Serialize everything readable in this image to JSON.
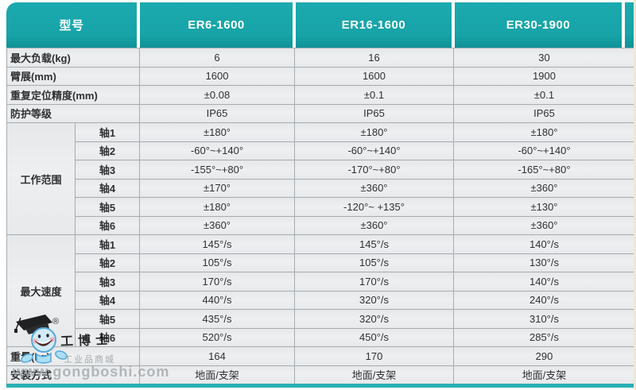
{
  "header": {
    "model_label": "型号",
    "columns": [
      "ER6-1600",
      "ER16-1600",
      "ER30-1900"
    ]
  },
  "table": {
    "simple_top": [
      {
        "label": "最大负载(kg)",
        "values": [
          "6",
          "16",
          "30"
        ]
      },
      {
        "label": "臂展(mm)",
        "values": [
          "1600",
          "1600",
          "1900"
        ]
      },
      {
        "label": "重复定位精度(mm)",
        "values": [
          "±0.08",
          "±0.1",
          "±0.1"
        ]
      },
      {
        "label": "防护等级",
        "values": [
          "IP65",
          "IP65",
          "IP65"
        ]
      }
    ],
    "groups": [
      {
        "label": "工作范围",
        "axes": [
          {
            "label": "轴1",
            "values": [
              "±180°",
              "±180°",
              "±180°"
            ]
          },
          {
            "label": "轴2",
            "values": [
              "-60°~+140°",
              "-60°~+140°",
              "-60°~+140°"
            ]
          },
          {
            "label": "轴3",
            "values": [
              "-155°~+80°",
              "-170°~+80°",
              "-165°~+80°"
            ]
          },
          {
            "label": "轴4",
            "values": [
              "±170°",
              "±360°",
              "±360°"
            ]
          },
          {
            "label": "轴5",
            "values": [
              "±180°",
              "-120°~ +135°",
              "±130°"
            ]
          },
          {
            "label": "轴6",
            "values": [
              "±360°",
              "±360°",
              "±360°"
            ]
          }
        ]
      },
      {
        "label": "最大速度",
        "axes": [
          {
            "label": "轴1",
            "values": [
              "145°/s",
              "145°/s",
              "140°/s"
            ]
          },
          {
            "label": "轴2",
            "values": [
              "105°/s",
              "105°/s",
              "130°/s"
            ]
          },
          {
            "label": "轴3",
            "values": [
              "170°/s",
              "170°/s",
              "140°/s"
            ]
          },
          {
            "label": "轴4",
            "values": [
              "440°/s",
              "320°/s",
              "240°/s"
            ]
          },
          {
            "label": "轴5",
            "values": [
              "435°/s",
              "320°/s",
              "310°/s"
            ]
          },
          {
            "label": "轴6",
            "values": [
              "520°/s",
              "450°/s",
              "285°/s"
            ]
          }
        ]
      }
    ],
    "simple_bottom": [
      {
        "label": "重量(kg)",
        "values": [
          "164",
          "170",
          "290"
        ]
      },
      {
        "label": "安装方式",
        "values": [
          "地面/支架",
          "地面/支架",
          "地面/支架"
        ]
      }
    ]
  },
  "watermark": {
    "registered": "®",
    "brand": "工博士",
    "subtitle": "工业品商城",
    "url": "www.gongboshi.com"
  },
  "colors": {
    "teal": "#17A3A7",
    "teal_light": "#1BAAAE",
    "teal_dark": "#0F9296",
    "accent_line": "#28B0B4",
    "row_bg": "#EAECEE",
    "border": "#A6ACB0"
  }
}
